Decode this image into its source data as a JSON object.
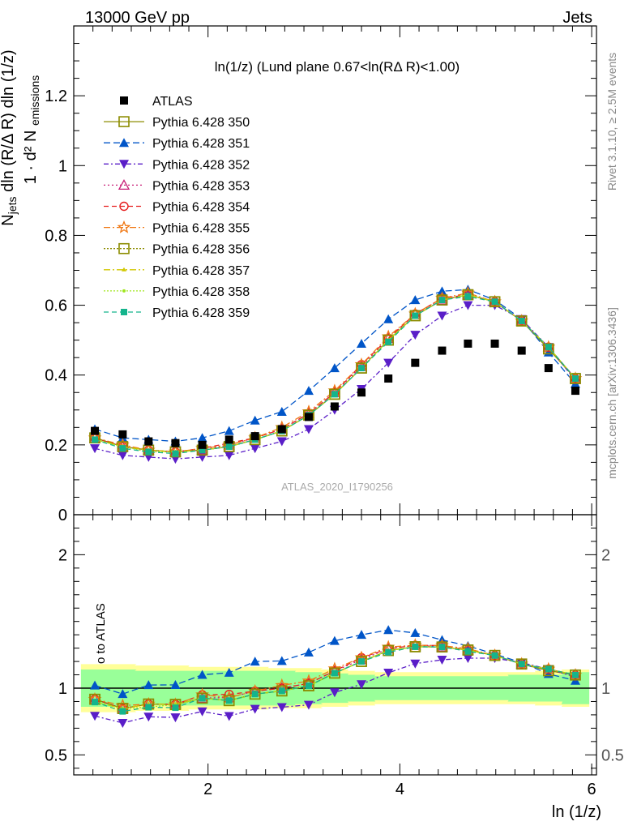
{
  "header": {
    "energy_label": "13000 GeV pp",
    "category_label": "Jets",
    "watermark": "ATLAS_2020_I1790256"
  },
  "side_text": {
    "rivet": "Rivet 3.1.10, ≥ 2.5M events",
    "mcplots": "mcplots.cern.ch [arXiv:1306.3436]"
  },
  "chart_data": {
    "type": "line",
    "title": "ln(1/z) (Lund plane 0.67<ln(RΔ R)<1.00)",
    "xlabel": "ln (1/z)",
    "ylabel": "1/N_jets d²N_emissions / dln(R/ΔR) dln(1/z)",
    "xlim": [
      0.6,
      6.05
    ],
    "ylim": [
      0,
      1.4
    ],
    "x_ticks": [
      2,
      4,
      6
    ],
    "y_ticks": [
      0,
      0.2,
      0.4,
      0.6,
      0.8,
      1,
      1.2
    ],
    "x": [
      0.82,
      1.11,
      1.38,
      1.66,
      1.94,
      2.22,
      2.49,
      2.77,
      3.05,
      3.32,
      3.6,
      3.88,
      4.16,
      4.44,
      4.71,
      4.99,
      5.27,
      5.55,
      5.83
    ],
    "data": {
      "name": "ATLAS",
      "color": "#000000",
      "values": [
        0.24,
        0.23,
        0.21,
        0.205,
        0.2,
        0.215,
        0.225,
        0.245,
        0.28,
        0.31,
        0.35,
        0.39,
        0.435,
        0.47,
        0.49,
        0.49,
        0.47,
        0.42,
        0.355
      ],
      "band_inner": [
        0.14,
        0.14,
        0.13,
        0.13,
        0.13,
        0.13,
        0.13,
        0.13,
        0.12,
        0.11,
        0.1,
        0.09,
        0.09,
        0.09,
        0.09,
        0.09,
        0.1,
        0.1,
        0.12
      ],
      "band_outer": [
        0.18,
        0.18,
        0.17,
        0.17,
        0.16,
        0.16,
        0.16,
        0.15,
        0.15,
        0.14,
        0.13,
        0.12,
        0.12,
        0.12,
        0.12,
        0.12,
        0.12,
        0.13,
        0.14
      ]
    },
    "series": [
      {
        "name": "Pythia 6.428 350",
        "color": "#8c8c00",
        "marker": "square-open",
        "dash": "",
        "values": [
          0.22,
          0.195,
          0.185,
          0.18,
          0.185,
          0.195,
          0.215,
          0.24,
          0.285,
          0.345,
          0.42,
          0.5,
          0.57,
          0.615,
          0.63,
          0.61,
          0.555,
          0.475,
          0.39
        ]
      },
      {
        "name": "Pythia 6.428 351",
        "color": "#0055c8",
        "marker": "triangle-up",
        "dash": "8,4",
        "values": [
          0.245,
          0.22,
          0.215,
          0.21,
          0.22,
          0.24,
          0.27,
          0.295,
          0.355,
          0.42,
          0.49,
          0.56,
          0.615,
          0.64,
          0.645,
          0.615,
          0.56,
          0.465,
          0.375
        ]
      },
      {
        "name": "Pythia 6.428 352",
        "color": "#5a1ec8",
        "marker": "triangle-down",
        "dash": "6,3,2,3",
        "values": [
          0.19,
          0.17,
          0.165,
          0.16,
          0.165,
          0.17,
          0.19,
          0.21,
          0.245,
          0.3,
          0.36,
          0.435,
          0.515,
          0.57,
          0.6,
          0.6,
          0.56,
          0.48,
          0.385
        ]
      },
      {
        "name": "Pythia 6.428 353",
        "color": "#c81e78",
        "marker": "triangle-open",
        "dash": "2,3",
        "values": [
          0.22,
          0.195,
          0.185,
          0.18,
          0.185,
          0.2,
          0.22,
          0.245,
          0.29,
          0.35,
          0.425,
          0.505,
          0.575,
          0.615,
          0.63,
          0.61,
          0.555,
          0.48,
          0.39
        ]
      },
      {
        "name": "Pythia 6.428 354",
        "color": "#e61e1e",
        "marker": "circle-open",
        "dash": "6,4",
        "values": [
          0.22,
          0.195,
          0.185,
          0.18,
          0.19,
          0.205,
          0.22,
          0.245,
          0.29,
          0.35,
          0.43,
          0.505,
          0.575,
          0.62,
          0.63,
          0.61,
          0.555,
          0.48,
          0.39
        ]
      },
      {
        "name": "Pythia 6.428 355",
        "color": "#f07814",
        "marker": "star-open",
        "dash": "8,3,2,3",
        "values": [
          0.22,
          0.2,
          0.185,
          0.18,
          0.19,
          0.2,
          0.22,
          0.25,
          0.295,
          0.355,
          0.43,
          0.51,
          0.575,
          0.62,
          0.635,
          0.61,
          0.555,
          0.48,
          0.39
        ]
      },
      {
        "name": "Pythia 6.428 356",
        "color": "#8c8c00",
        "marker": "square-open",
        "dash": "2,2",
        "values": [
          0.22,
          0.195,
          0.185,
          0.18,
          0.185,
          0.195,
          0.215,
          0.24,
          0.285,
          0.345,
          0.42,
          0.5,
          0.57,
          0.615,
          0.63,
          0.61,
          0.555,
          0.475,
          0.39
        ]
      },
      {
        "name": "Pythia 6.428 357",
        "color": "#d2c800",
        "marker": "tri-small",
        "dash": "8,3,2,3",
        "values": [
          0.215,
          0.195,
          0.185,
          0.18,
          0.185,
          0.195,
          0.215,
          0.24,
          0.285,
          0.345,
          0.42,
          0.5,
          0.57,
          0.615,
          0.63,
          0.61,
          0.555,
          0.48,
          0.39
        ]
      },
      {
        "name": "Pythia 6.428 358",
        "color": "#a0e61e",
        "marker": "dot",
        "dash": "2,2",
        "values": [
          0.215,
          0.195,
          0.18,
          0.18,
          0.185,
          0.195,
          0.215,
          0.24,
          0.285,
          0.345,
          0.42,
          0.5,
          0.57,
          0.615,
          0.63,
          0.61,
          0.555,
          0.48,
          0.39
        ]
      },
      {
        "name": "Pythia 6.428 359",
        "color": "#14b48c",
        "marker": "square-filled",
        "dash": "6,4",
        "values": [
          0.215,
          0.19,
          0.18,
          0.175,
          0.185,
          0.195,
          0.215,
          0.24,
          0.285,
          0.345,
          0.42,
          0.495,
          0.57,
          0.615,
          0.625,
          0.61,
          0.555,
          0.48,
          0.39
        ]
      }
    ],
    "ratio": {
      "ylabel": "Ratio to ATLAS",
      "ylim": [
        0.35,
        2.3
      ],
      "y_ticks": [
        0.5,
        1,
        2
      ],
      "y_tick_labels": [
        "0.5",
        "1",
        "2"
      ]
    },
    "legend": "top-left",
    "grid": false
  }
}
